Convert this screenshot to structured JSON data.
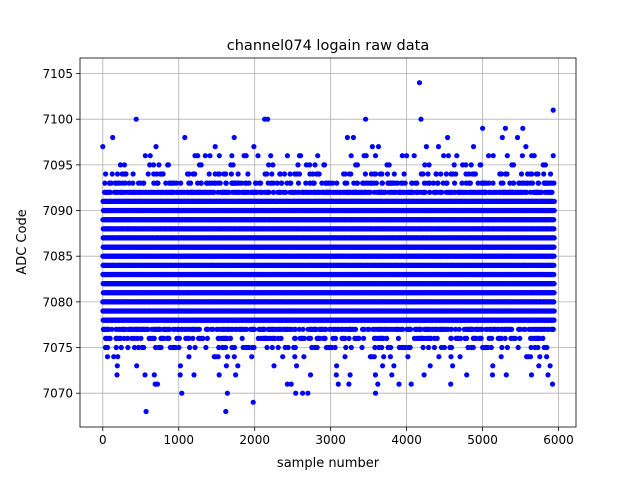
{
  "chart_data": {
    "type": "scatter",
    "title": "channel074 logain raw data",
    "xlabel": "sample number",
    "ylabel": "ADC Code",
    "xlim": [
      -300,
      6230
    ],
    "ylim": [
      7066.3,
      7106.7
    ],
    "xticks": [
      0,
      1000,
      2000,
      3000,
      4000,
      5000,
      6000
    ],
    "yticks": [
      7070,
      7075,
      7080,
      7085,
      7090,
      7095,
      7100,
      7105
    ],
    "x_tick_labels": [
      "0",
      "1000",
      "2000",
      "3000",
      "4000",
      "5000",
      "6000"
    ],
    "y_tick_labels": [
      "7070",
      "7075",
      "7080",
      "7085",
      "7090",
      "7095",
      "7100",
      "7105"
    ],
    "grid": true,
    "marker_color": "#0000ff",
    "series": [
      {
        "x_range": [
          0,
          5939
        ],
        "dense_band": [
          7078,
          7091
        ],
        "values_min": 7068,
        "values_max": 7104,
        "notable_points": [
          [
            4170,
            7104
          ],
          [
            5930,
            7101
          ],
          [
            440,
            7100
          ],
          [
            2130,
            7100
          ],
          [
            2170,
            7100
          ],
          [
            3460,
            7100
          ],
          [
            4190,
            7100
          ],
          [
            5000,
            7099
          ],
          [
            5300,
            7099
          ],
          [
            5530,
            7099
          ],
          [
            130,
            7098
          ],
          [
            1080,
            7098
          ],
          [
            1730,
            7098
          ],
          [
            3220,
            7098
          ],
          [
            3300,
            7098
          ],
          [
            4540,
            7098
          ],
          [
            5260,
            7098
          ],
          [
            5460,
            7098
          ],
          [
            4420,
            7097
          ],
          [
            5570,
            7097
          ],
          [
            0,
            7097
          ],
          [
            700,
            7097
          ],
          [
            1480,
            7097
          ],
          [
            1990,
            7097
          ],
          [
            3550,
            7097
          ],
          [
            3630,
            7097
          ],
          [
            4260,
            7097
          ],
          [
            4880,
            7097
          ],
          [
            560,
            7096
          ],
          [
            1250,
            7096
          ],
          [
            1350,
            7096
          ],
          [
            1700,
            7096
          ],
          [
            1860,
            7096
          ],
          [
            2210,
            7096
          ],
          [
            2590,
            7096
          ],
          [
            2830,
            7096
          ],
          [
            3440,
            7096
          ],
          [
            4000,
            7096
          ],
          [
            4550,
            7096
          ],
          [
            5080,
            7096
          ],
          [
            5140,
            7096
          ],
          [
            5680,
            7096
          ],
          [
            5930,
            7096
          ],
          [
            1040,
            7070
          ],
          [
            2540,
            7070
          ],
          [
            2630,
            7070
          ],
          [
            2700,
            7070
          ],
          [
            3590,
            7070
          ],
          [
            570,
            7068
          ],
          [
            1620,
            7068
          ],
          [
            1980,
            7069
          ],
          [
            3100,
            7071
          ],
          [
            3240,
            7071
          ],
          [
            3900,
            7071
          ],
          [
            4060,
            7071
          ],
          [
            4580,
            7071
          ],
          [
            5920,
            7071
          ],
          [
            2430,
            7071
          ],
          [
            2480,
            7071
          ],
          [
            720,
            7071
          ],
          [
            690,
            7071
          ],
          [
            1640,
            7070
          ],
          [
            3620,
            7071
          ],
          [
            4230,
            7072
          ]
        ]
      }
    ]
  }
}
